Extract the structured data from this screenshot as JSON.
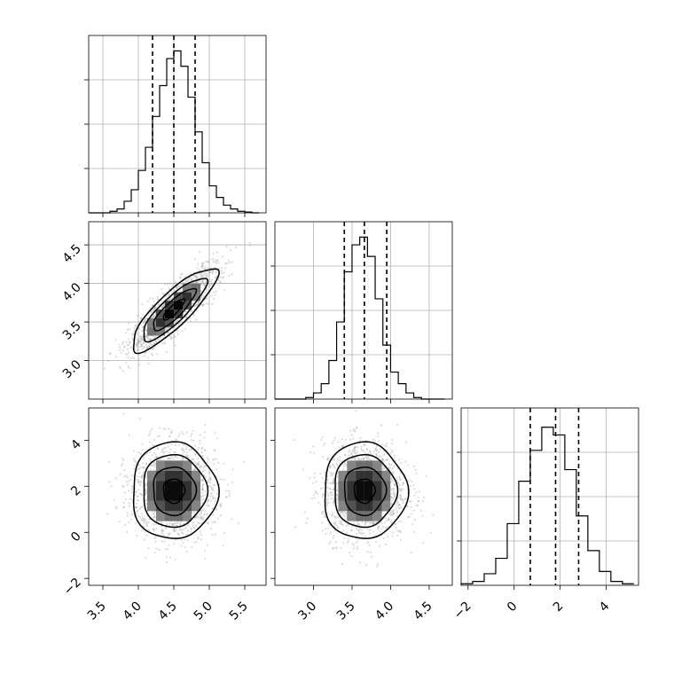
{
  "chart_data": {
    "type": "corner",
    "parameters": [
      {
        "id": "p0",
        "range": [
          3.3,
          5.8
        ],
        "ticks": [
          "3.5",
          "4.0",
          "4.5",
          "5.0",
          "5.5"
        ],
        "tick_values": [
          3.5,
          4.0,
          4.5,
          5.0,
          5.5
        ],
        "quantiles": [
          4.2,
          4.5,
          4.8
        ],
        "hist_bins": [
          3.3,
          3.4,
          3.5,
          3.6,
          3.7,
          3.8,
          3.9,
          4.0,
          4.1,
          4.2,
          4.3,
          4.4,
          4.5,
          4.6,
          4.7,
          4.8,
          4.9,
          5.0,
          5.1,
          5.2,
          5.3,
          5.4,
          5.5,
          5.6,
          5.7
        ],
        "hist_counts": [
          0,
          0,
          0,
          2,
          5,
          15,
          30,
          55,
          85,
          125,
          165,
          200,
          210,
          190,
          150,
          105,
          65,
          35,
          20,
          10,
          5,
          2,
          1,
          0
        ],
        "hist_ymax": 230
      },
      {
        "id": "p1",
        "range": [
          2.5,
          4.8
        ],
        "ticks": [
          "3.0",
          "3.5",
          "4.0",
          "4.5"
        ],
        "tick_values": [
          3.0,
          3.5,
          4.0,
          4.5
        ],
        "quantiles": [
          3.4,
          3.66,
          3.95
        ],
        "hist_bins": [
          2.5,
          2.6,
          2.7,
          2.8,
          2.9,
          3.0,
          3.1,
          3.2,
          3.3,
          3.4,
          3.5,
          3.6,
          3.7,
          3.8,
          3.9,
          4.0,
          4.1,
          4.2,
          4.3,
          4.4,
          4.5,
          4.6,
          4.7
        ],
        "hist_counts": [
          0,
          0,
          0,
          0,
          2,
          8,
          20,
          50,
          100,
          165,
          200,
          210,
          185,
          130,
          70,
          35,
          20,
          8,
          2,
          0,
          0,
          0
        ],
        "hist_ymax": 230
      },
      {
        "id": "p2",
        "range": [
          -2.3,
          5.4
        ],
        "ticks": [
          "−2",
          "0",
          "2",
          "4"
        ],
        "tick_values": [
          -2,
          0,
          2,
          4
        ],
        "quantiles": [
          0.7,
          1.8,
          2.8
        ],
        "hist_bins": [
          -2.3,
          -1.8,
          -1.3,
          -0.8,
          -0.3,
          0.2,
          0.7,
          1.2,
          1.7,
          2.2,
          2.7,
          3.2,
          3.7,
          4.2,
          4.7,
          5.2
        ],
        "hist_counts": [
          2,
          5,
          15,
          35,
          80,
          135,
          175,
          205,
          195,
          150,
          90,
          45,
          18,
          5,
          2
        ],
        "hist_ymax": 230
      }
    ],
    "pairs": [
      {
        "x": "p0",
        "y": "p1",
        "mean": [
          4.5,
          3.66
        ],
        "std": [
          0.3,
          0.27
        ],
        "correlation": 0.85,
        "contour_levels_sigma": [
          0.5,
          1.0,
          1.5,
          2.0
        ],
        "grid": true
      },
      {
        "x": "p0",
        "y": "p2",
        "mean": [
          4.5,
          1.8
        ],
        "std": [
          0.3,
          1.05
        ],
        "correlation": 0.0,
        "contour_levels_sigma": [
          0.5,
          1.0,
          1.5,
          2.0
        ],
        "grid": false
      },
      {
        "x": "p1",
        "y": "p2",
        "mean": [
          3.66,
          1.8
        ],
        "std": [
          0.27,
          1.05
        ],
        "correlation": 0.0,
        "contour_levels_sigma": [
          0.5,
          1.0,
          1.5,
          2.0
        ],
        "grid": false
      }
    ]
  }
}
